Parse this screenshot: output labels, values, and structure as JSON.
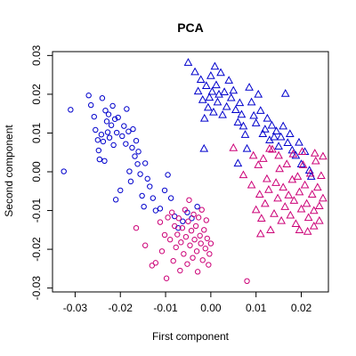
{
  "chart_data": {
    "type": "scatter",
    "title": "PCA",
    "xlabel": "First component",
    "ylabel": "Second component",
    "xlim": [
      -0.035,
      0.026
    ],
    "ylim": [
      -0.031,
      0.031
    ],
    "xticks": [
      -0.03,
      -0.02,
      -0.01,
      0.0,
      0.01,
      0.02
    ],
    "xtick_labels": [
      "-0.03",
      "-0.02",
      "-0.01",
      "0.00",
      "0.01",
      "0.02"
    ],
    "yticks": [
      -0.03,
      -0.02,
      -0.01,
      0.0,
      0.01,
      0.02,
      0.03
    ],
    "ytick_labels": [
      "-0.03",
      "-0.02",
      "-0.01",
      "0.00",
      "0.01",
      "0.02",
      "0.03"
    ],
    "grid": false,
    "series": [
      {
        "marker": "circle",
        "color": "#0000cc",
        "points": [
          [
            -0.0325,
            0.0001
          ],
          [
            -0.031,
            0.016
          ],
          [
            -0.027,
            0.0197
          ],
          [
            -0.0265,
            0.0172
          ],
          [
            -0.0258,
            0.0142
          ],
          [
            -0.0255,
            0.0108
          ],
          [
            -0.025,
            0.0082
          ],
          [
            -0.0248,
            0.0055
          ],
          [
            -0.0246,
            0.0032
          ],
          [
            -0.0242,
            0.0096
          ],
          [
            -0.024,
            0.019
          ],
          [
            -0.0238,
            0.0078
          ],
          [
            -0.0235,
            0.0028
          ],
          [
            -0.0233,
            0.0158
          ],
          [
            -0.023,
            0.013
          ],
          [
            -0.0228,
            0.0102
          ],
          [
            -0.0226,
            0.0148
          ],
          [
            -0.0224,
            0.0088
          ],
          [
            -0.022,
            0.012
          ],
          [
            -0.0217,
            0.017
          ],
          [
            -0.0215,
            0.0069
          ],
          [
            -0.0212,
            0.0136
          ],
          [
            -0.021,
            -0.0072
          ],
          [
            -0.0208,
            0.0101
          ],
          [
            -0.0205,
            0.014
          ],
          [
            -0.02,
            -0.0048
          ],
          [
            -0.0196,
            0.0092
          ],
          [
            -0.0192,
            0.0118
          ],
          [
            -0.0188,
            0.0072
          ],
          [
            -0.0186,
            0.0162
          ],
          [
            -0.0182,
            0.0104
          ],
          [
            -0.018,
            0.0001
          ],
          [
            -0.0177,
            -0.0025
          ],
          [
            -0.0174,
            0.0062
          ],
          [
            -0.0172,
            0.011
          ],
          [
            -0.0168,
            0.004
          ],
          [
            -0.0165,
            0.008
          ],
          [
            -0.0162,
            0.002
          ],
          [
            -0.016,
            0.0052
          ],
          [
            -0.0156,
            -0.0006
          ],
          [
            -0.0152,
            -0.0062
          ],
          [
            -0.0148,
            -0.009
          ],
          [
            -0.0145,
            0.0022
          ],
          [
            -0.014,
            -0.0018
          ],
          [
            -0.0135,
            -0.0038
          ],
          [
            -0.0128,
            -0.0068
          ],
          [
            -0.0122,
            -0.01
          ],
          [
            -0.0112,
            -0.0095
          ],
          [
            -0.0102,
            -0.0048
          ],
          [
            -0.0095,
            -0.0008
          ],
          [
            -0.0088,
            -0.0068
          ],
          [
            -0.008,
            -0.0115
          ],
          [
            -0.0072,
            -0.0145
          ],
          [
            -0.0062,
            -0.0128
          ],
          [
            -0.0052,
            -0.0105
          ],
          [
            -0.0042,
            -0.012
          ],
          [
            -0.003,
            -0.009
          ]
        ]
      },
      {
        "marker": "circle",
        "color": "#cc0077",
        "points": [
          [
            -0.0165,
            -0.0145
          ],
          [
            -0.0145,
            -0.019
          ],
          [
            -0.013,
            -0.0242
          ],
          [
            -0.0122,
            -0.0235
          ],
          [
            -0.0112,
            -0.013
          ],
          [
            -0.0108,
            -0.0205
          ],
          [
            -0.0102,
            -0.0163
          ],
          [
            -0.0098,
            -0.0275
          ],
          [
            -0.0095,
            -0.0118
          ],
          [
            -0.009,
            -0.0175
          ],
          [
            -0.0086,
            -0.0105
          ],
          [
            -0.0083,
            -0.023
          ],
          [
            -0.008,
            -0.014
          ],
          [
            -0.0077,
            -0.0195
          ],
          [
            -0.0074,
            -0.0162
          ],
          [
            -0.0071,
            -0.012
          ],
          [
            -0.0068,
            -0.0255
          ],
          [
            -0.0066,
            -0.0182
          ],
          [
            -0.0063,
            -0.0145
          ],
          [
            -0.006,
            -0.0212
          ],
          [
            -0.0057,
            -0.0098
          ],
          [
            -0.0055,
            -0.0168
          ],
          [
            -0.0052,
            -0.0238
          ],
          [
            -0.005,
            -0.0128
          ],
          [
            -0.0048,
            -0.0073
          ],
          [
            -0.0046,
            -0.019
          ],
          [
            -0.0043,
            -0.0152
          ],
          [
            -0.004,
            -0.0222
          ],
          [
            -0.0038,
            -0.011
          ],
          [
            -0.0036,
            -0.0175
          ],
          [
            -0.0033,
            -0.014
          ],
          [
            -0.0031,
            -0.0205
          ],
          [
            -0.0029,
            -0.0258
          ],
          [
            -0.0027,
            -0.0118
          ],
          [
            -0.0024,
            -0.0165
          ],
          [
            -0.0022,
            -0.0185
          ],
          [
            -0.002,
            -0.0098
          ],
          [
            -0.0018,
            -0.0228
          ],
          [
            -0.0015,
            -0.015
          ],
          [
            -0.0012,
            -0.0198
          ],
          [
            -0.001,
            -0.0125
          ],
          [
            -0.0008,
            -0.0172
          ],
          [
            -0.0005,
            -0.024
          ],
          [
            -0.0003,
            -0.0212
          ],
          [
            0.0,
            -0.0185
          ],
          [
            0.008,
            -0.0282
          ]
        ]
      },
      {
        "marker": "triangle",
        "color": "#0000cc",
        "points": [
          [
            -0.005,
            0.0282
          ],
          [
            -0.0035,
            0.0258
          ],
          [
            -0.0028,
            0.0208
          ],
          [
            -0.0022,
            0.0238
          ],
          [
            -0.0018,
            0.0186
          ],
          [
            -0.0014,
            0.0138
          ],
          [
            -0.001,
            0.0222
          ],
          [
            -0.0006,
            0.0166
          ],
          [
            -0.0003,
            0.0192
          ],
          [
            0.0,
            0.0248
          ],
          [
            0.0003,
            0.0207
          ],
          [
            0.0006,
            0.0154
          ],
          [
            0.0009,
            0.0272
          ],
          [
            0.0012,
            0.0224
          ],
          [
            0.0015,
            0.018
          ],
          [
            0.0018,
            0.02
          ],
          [
            0.0022,
            0.0256
          ],
          [
            0.0026,
            0.0147
          ],
          [
            0.003,
            0.0206
          ],
          [
            0.0035,
            0.0168
          ],
          [
            0.004,
            0.0236
          ],
          [
            0.0045,
            0.0191
          ],
          [
            0.005,
            0.021
          ],
          [
            0.0055,
            0.016
          ],
          [
            0.006,
            0.0128
          ],
          [
            0.0064,
            0.0178
          ],
          [
            0.0068,
            0.0148
          ],
          [
            0.0072,
            0.0118
          ],
          [
            0.0076,
            0.0096
          ],
          [
            0.008,
            0.006
          ],
          [
            0.0085,
            0.0218
          ],
          [
            0.009,
            0.018
          ],
          [
            0.0095,
            0.0145
          ],
          [
            0.01,
            0.0126
          ],
          [
            0.0105,
            0.02
          ],
          [
            0.011,
            0.0158
          ],
          [
            0.0115,
            0.0098
          ],
          [
            0.012,
            0.011
          ],
          [
            0.0125,
            0.0138
          ],
          [
            0.013,
            0.0082
          ],
          [
            0.0135,
            0.012
          ],
          [
            0.014,
            0.009
          ],
          [
            0.0145,
            0.0105
          ],
          [
            0.015,
            0.0066
          ],
          [
            0.0155,
            0.009
          ],
          [
            0.016,
            0.0118
          ],
          [
            0.0165,
            0.0202
          ],
          [
            0.017,
            0.0075
          ],
          [
            0.0175,
            0.0098
          ],
          [
            0.018,
            0.0056
          ],
          [
            0.0188,
            0.0042
          ],
          [
            0.0195,
            0.0076
          ],
          [
            0.02,
            0.002
          ],
          [
            0.0208,
            0.0052
          ],
          [
            0.0218,
            0.0004
          ],
          [
            0.0222,
            -0.0012
          ],
          [
            -0.0015,
            0.006
          ],
          [
            0.006,
            0.0022
          ]
        ]
      },
      {
        "marker": "triangle",
        "color": "#cc0077",
        "points": [
          [
            0.005,
            0.0062
          ],
          [
            0.0072,
            -0.0008
          ],
          [
            0.009,
            -0.0034
          ],
          [
            0.0094,
            0.0042
          ],
          [
            0.01,
            -0.0098
          ],
          [
            0.0105,
            0.0018
          ],
          [
            0.0108,
            -0.0058
          ],
          [
            0.0112,
            -0.012
          ],
          [
            0.0116,
            0.0034
          ],
          [
            0.012,
            -0.0082
          ],
          [
            0.0124,
            -0.0018
          ],
          [
            0.0128,
            -0.0046
          ],
          [
            0.0132,
            -0.015
          ],
          [
            0.0136,
            0.0058
          ],
          [
            0.014,
            -0.0108
          ],
          [
            0.0144,
            -0.0028
          ],
          [
            0.0148,
            -0.0068
          ],
          [
            0.0152,
            0.0008
          ],
          [
            0.0156,
            -0.0126
          ],
          [
            0.016,
            -0.004
          ],
          [
            0.0164,
            -0.009
          ],
          [
            0.0168,
            0.002
          ],
          [
            0.0172,
            -0.006
          ],
          [
            0.0176,
            -0.0112
          ],
          [
            0.018,
            -0.002
          ],
          [
            0.0184,
            -0.0074
          ],
          [
            0.0188,
            -0.0134
          ],
          [
            0.0192,
            -0.0012
          ],
          [
            0.0196,
            -0.0052
          ],
          [
            0.02,
            -0.0096
          ],
          [
            0.0204,
            0.0018
          ],
          [
            0.0208,
            -0.0034
          ],
          [
            0.0212,
            -0.0082
          ],
          [
            0.0216,
            -0.0118
          ],
          [
            0.022,
            -0.0004
          ],
          [
            0.0224,
            -0.0058
          ],
          [
            0.0228,
            -0.01
          ],
          [
            0.0232,
            0.0028
          ],
          [
            0.0236,
            -0.004
          ],
          [
            0.024,
            -0.0088
          ],
          [
            0.0244,
            -0.001
          ],
          [
            0.0248,
            -0.0068
          ],
          [
            0.024,
            -0.0126
          ],
          [
            0.0228,
            -0.014
          ],
          [
            0.0214,
            -0.0154
          ],
          [
            0.0196,
            -0.015
          ],
          [
            0.011,
            -0.016
          ],
          [
            0.015,
            0.0042
          ],
          [
            0.0182,
            0.0046
          ],
          [
            0.0202,
            0.0052
          ],
          [
            0.023,
            0.0048
          ],
          [
            0.0248,
            0.004
          ],
          [
            0.013,
            0.006
          ]
        ]
      }
    ]
  }
}
